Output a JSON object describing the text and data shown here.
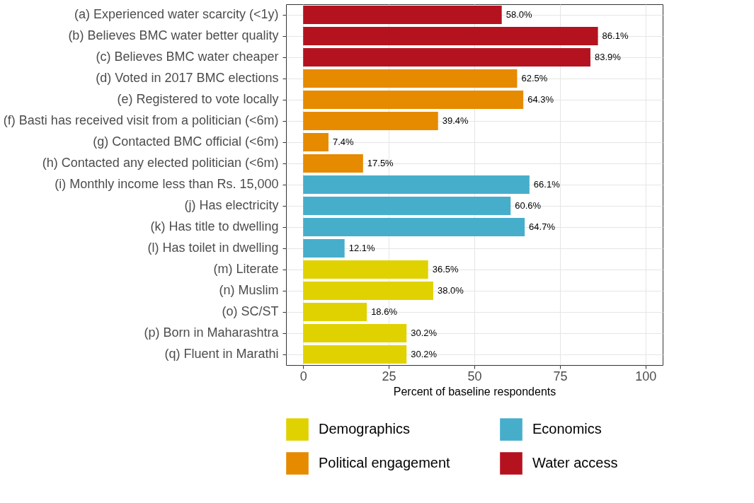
{
  "chart_data": {
    "type": "bar",
    "orientation": "horizontal",
    "xlabel": "Percent of baseline respondents",
    "categories": [
      "(a) Experienced water scarcity (<1y)",
      "(b) Believes BMC water better quality",
      "(c) Believes BMC water cheaper",
      "(d) Voted in 2017 BMC elections",
      "(e) Registered to vote locally",
      "(f) Basti has received visit from a politician (<6m)",
      "(g) Contacted BMC official (<6m)",
      "(h) Contacted any elected politician (<6m)",
      "(i) Monthly income less than Rs. 15,000",
      "(j) Has electricity",
      "(k) Has title to dwelling",
      "(l) Has toilet in dwelling",
      "(m) Literate",
      "(n) Muslim",
      "(o) SC/ST",
      "(p) Born in Maharashtra",
      "(q) Fluent in Marathi"
    ],
    "series": [
      {
        "name": "Demographics",
        "color": "#e0d200",
        "values": [
          null,
          null,
          null,
          null,
          null,
          null,
          null,
          null,
          null,
          null,
          null,
          null,
          36.5,
          38.0,
          18.6,
          30.2,
          30.2
        ],
        "value_labels": [
          null,
          null,
          null,
          null,
          null,
          null,
          null,
          null,
          null,
          null,
          null,
          null,
          "36.5%",
          "38.0%",
          "18.6%",
          "30.2%",
          "30.2%"
        ]
      },
      {
        "name": "Economics",
        "color": "#46aecb",
        "values": [
          null,
          null,
          null,
          null,
          null,
          null,
          null,
          null,
          66.1,
          60.6,
          64.7,
          12.1,
          null,
          null,
          null,
          null,
          null
        ],
        "value_labels": [
          null,
          null,
          null,
          null,
          null,
          null,
          null,
          null,
          "66.1%",
          "60.6%",
          "64.7%",
          "12.1%",
          null,
          null,
          null,
          null,
          null
        ]
      },
      {
        "name": "Political engagement",
        "color": "#e68a00",
        "values": [
          null,
          null,
          null,
          62.5,
          64.3,
          39.4,
          7.4,
          17.5,
          null,
          null,
          null,
          null,
          null,
          null,
          null,
          null,
          null
        ],
        "value_labels": [
          null,
          null,
          null,
          "62.5%",
          "64.3%",
          "39.4%",
          "7.4%",
          "17.5%",
          null,
          null,
          null,
          null,
          null,
          null,
          null,
          null,
          null
        ]
      },
      {
        "name": "Water access",
        "color": "#b5121f",
        "values": [
          58.0,
          86.1,
          83.9,
          null,
          null,
          null,
          null,
          null,
          null,
          null,
          null,
          null,
          null,
          null,
          null,
          null,
          null
        ],
        "value_labels": [
          "58.0%",
          "86.1%",
          "83.9%",
          null,
          null,
          null,
          null,
          null,
          null,
          null,
          null,
          null,
          null,
          null,
          null,
          null,
          null
        ]
      }
    ],
    "xlim": [
      -5,
      105
    ],
    "xticks": [
      0,
      25,
      50,
      75,
      100
    ],
    "grid": true,
    "legend": "bottom"
  }
}
